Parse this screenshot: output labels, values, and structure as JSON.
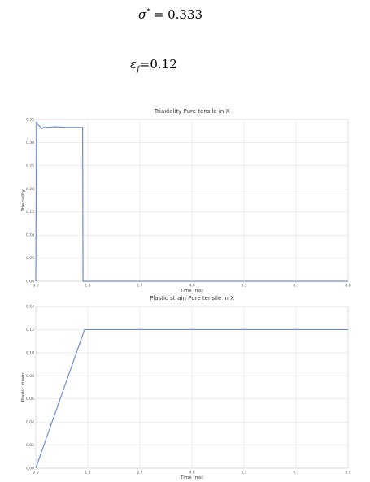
{
  "equations": [
    {
      "symbol": "σ",
      "sup": "*",
      "rhs": "= 0.333"
    },
    {
      "symbol": "ε",
      "sub": "f",
      "rhs": "=0.12"
    }
  ],
  "chart_data": [
    {
      "type": "line",
      "title": "Triaxiality Pure tensile in X",
      "x_label": "Time (ms)",
      "y_label": "Triaxiality",
      "color": "#6b8fd6",
      "grid": true,
      "x": [
        0,
        0.02,
        0.05,
        0.1,
        0.15,
        0.2,
        0.3,
        0.5,
        0.8,
        1.0,
        1.2,
        1.21,
        1.5,
        8.0
      ],
      "values": [
        0,
        0.345,
        0.34,
        0.335,
        0.33,
        0.333,
        0.333,
        0.334,
        0.333,
        0.333,
        0.333,
        0,
        0,
        0
      ],
      "xlim": [
        0,
        8
      ],
      "xticks": [
        {
          "value": 0,
          "label": "0.0"
        },
        {
          "value": 1.333,
          "label": "1.3"
        },
        {
          "value": 2.667,
          "label": "2.7"
        },
        {
          "value": 4,
          "label": "4.0"
        },
        {
          "value": 5.333,
          "label": "5.3"
        },
        {
          "value": 6.667,
          "label": "6.7"
        },
        {
          "value": 8,
          "label": "8.0"
        }
      ],
      "ylim": [
        0,
        0.35
      ],
      "yticks": [
        {
          "value": 0,
          "label": "0.00"
        },
        0.05,
        {
          "value": 0.1,
          "label": "0.10"
        },
        0.15,
        {
          "value": 0.2,
          "label": "0.20"
        },
        0.25,
        {
          "value": 0.3,
          "label": "0.30"
        },
        0.35
      ]
    },
    {
      "type": "line",
      "title": "Plastic strain Pure tensile in X",
      "x_label": "Time (ms)",
      "y_label": "Plastic strain",
      "color": "#6b8fd6",
      "grid": true,
      "x": [
        0,
        1.25,
        8.0
      ],
      "values": [
        0,
        0.12,
        0.12
      ],
      "xlim": [
        0,
        8
      ],
      "xticks": [
        {
          "value": 0,
          "label": "0.0"
        },
        {
          "value": 1.333,
          "label": "1.3"
        },
        {
          "value": 2.667,
          "label": "2.7"
        },
        {
          "value": 4,
          "label": "4.0"
        },
        {
          "value": 5.333,
          "label": "5.3"
        },
        {
          "value": 6.667,
          "label": "6.7"
        },
        {
          "value": 8,
          "label": "8.0"
        }
      ],
      "ylim": [
        0,
        0.14
      ],
      "yticks": [
        {
          "value": 0,
          "label": "0.00"
        },
        0.02,
        0.04,
        0.06,
        0.08,
        {
          "value": 0.1,
          "label": "0.10"
        },
        0.12,
        0.14
      ]
    }
  ]
}
